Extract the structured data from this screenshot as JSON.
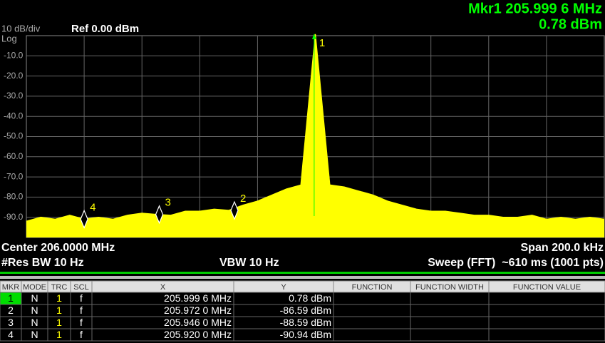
{
  "header": {
    "marker_readout": "Mkr1 205.999 6 MHz",
    "marker_value": "0.78 dBm",
    "scale": "10 dB/div",
    "scale_type": "Log",
    "ref_level": "Ref 0.00 dBm"
  },
  "chart_data": {
    "type": "line",
    "color": "#ffff00",
    "grid": true,
    "xlim": [
      205.9,
      206.1
    ],
    "ylim": [
      -100,
      0
    ],
    "yticks": [
      {
        "value": -10,
        "label": "-10.0"
      },
      {
        "value": -20,
        "label": "-20.0"
      },
      {
        "value": -30,
        "label": "-30.0"
      },
      {
        "value": -40,
        "label": "-40.0"
      },
      {
        "value": -50,
        "label": "-50.0"
      },
      {
        "value": -60,
        "label": "-60.0"
      },
      {
        "value": -70,
        "label": "-70.0"
      },
      {
        "value": -80,
        "label": "-80.0"
      },
      {
        "value": -90,
        "label": "-90.0"
      }
    ],
    "x": [
      205.9,
      205.905,
      205.91,
      205.915,
      205.92,
      205.925,
      205.93,
      205.935,
      205.94,
      205.945,
      205.95,
      205.955,
      205.96,
      205.965,
      205.97,
      205.975,
      205.98,
      205.985,
      205.99,
      205.995,
      206.0,
      206.005,
      206.01,
      206.015,
      206.02,
      206.025,
      206.03,
      206.035,
      206.04,
      206.045,
      206.05,
      206.055,
      206.06,
      206.065,
      206.07,
      206.075,
      206.08,
      206.085,
      206.09,
      206.095,
      206.1
    ],
    "values": [
      -92,
      -90,
      -91,
      -89,
      -90.94,
      -90,
      -91,
      -89,
      -88,
      -88.59,
      -89,
      -87,
      -87,
      -86,
      -86.59,
      -84,
      -82,
      -79,
      -76,
      -74,
      0.78,
      -74,
      -75,
      -77,
      -79,
      -82,
      -84,
      -86,
      -87,
      -87,
      -88,
      -89,
      -89,
      -90,
      -90,
      -89,
      -91,
      -90,
      -91,
      -90,
      -91
    ],
    "markers": [
      {
        "label": "1",
        "x": 205.9996,
        "y": 0.78
      },
      {
        "label": "2",
        "x": 205.972,
        "y": -86.59
      },
      {
        "label": "3",
        "x": 205.946,
        "y": -88.59
      },
      {
        "label": "4",
        "x": 205.92,
        "y": -90.94
      }
    ]
  },
  "footer": {
    "center": "Center 206.0000 MHz",
    "span": "Span 200.0 kHz",
    "rbw": "#Res BW 10 Hz",
    "vbw": "VBW 10 Hz",
    "sweep": "Sweep (FFT)  ~610 ms (1001 pts)"
  },
  "table": {
    "headers": [
      "MKR",
      "MODE",
      "TRC",
      "SCL",
      "X",
      "Y",
      "FUNCTION",
      "FUNCTION WIDTH",
      "FUNCTION VALUE"
    ],
    "rows": [
      [
        "1",
        "N",
        "1",
        "f",
        "205.999 6 MHz",
        "0.78 dBm"
      ],
      [
        "2",
        "N",
        "1",
        "f",
        "205.972 0 MHz",
        "-86.59 dBm"
      ],
      [
        "3",
        "N",
        "1",
        "f",
        "205.946 0 MHz",
        "-88.59 dBm"
      ],
      [
        "4",
        "N",
        "1",
        "f",
        "205.920 0 MHz",
        "-90.94 dBm"
      ]
    ]
  }
}
